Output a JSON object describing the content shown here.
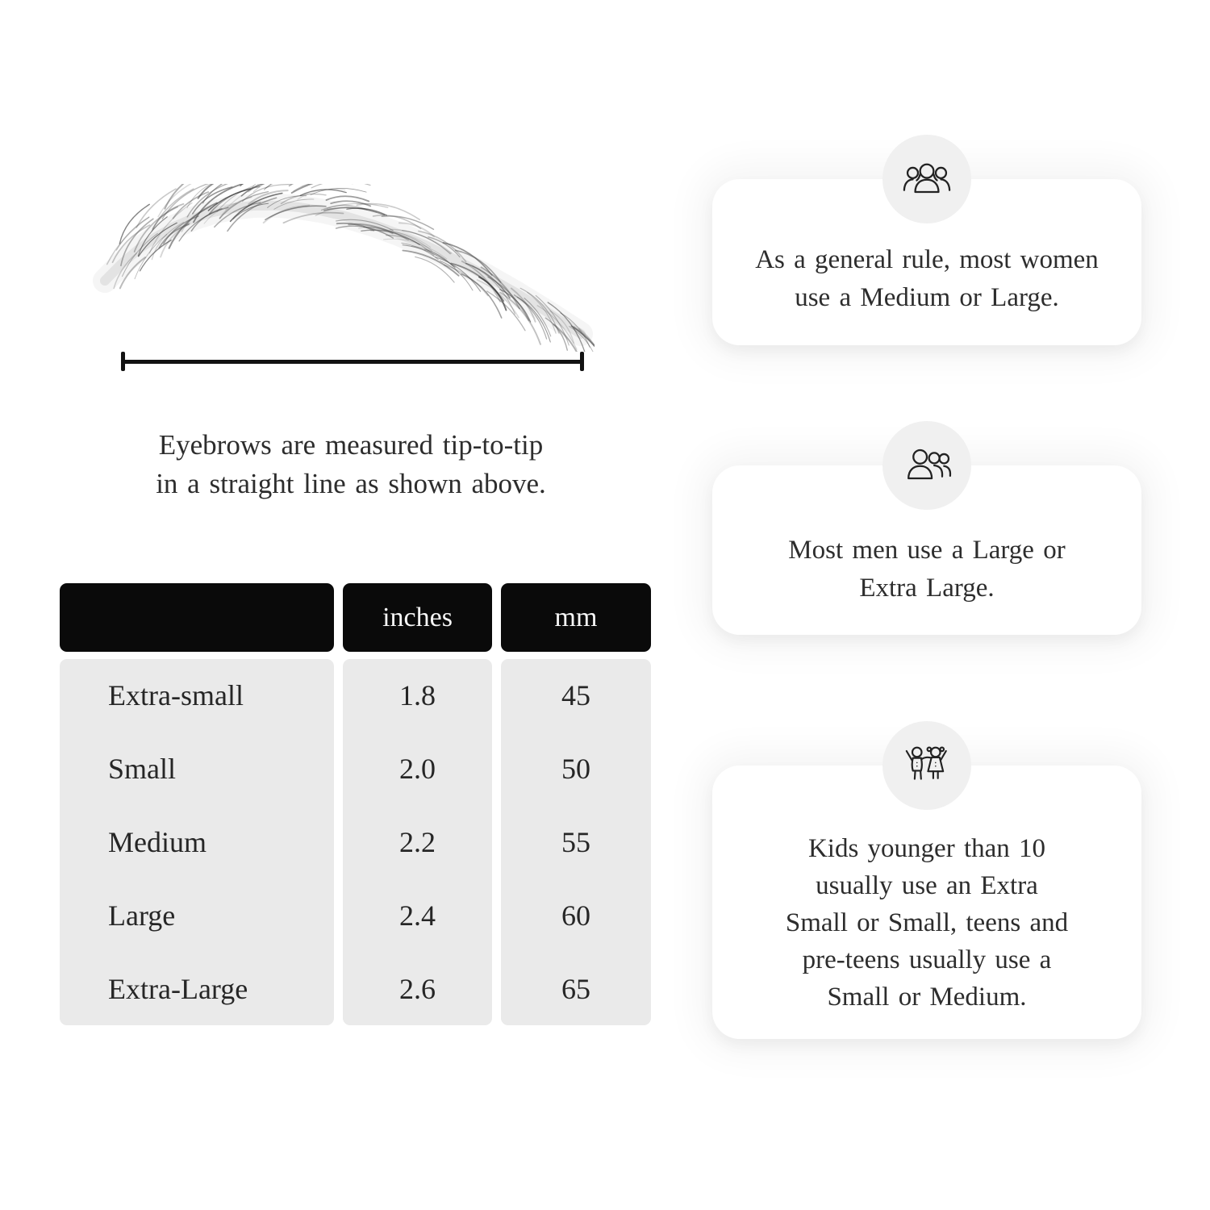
{
  "measure": {
    "caption_line1": "Eyebrows are measured tip-to-tip",
    "caption_line2": "in a straight line as shown above."
  },
  "table": {
    "headers": [
      "",
      "inches",
      "mm"
    ],
    "rows": [
      {
        "label": "Extra-small",
        "inches": "1.8",
        "mm": "45"
      },
      {
        "label": "Small",
        "inches": "2.0",
        "mm": "50"
      },
      {
        "label": "Medium",
        "inches": "2.2",
        "mm": "55"
      },
      {
        "label": "Large",
        "inches": "2.4",
        "mm": "60"
      },
      {
        "label": "Extra-Large",
        "inches": "2.6",
        "mm": "65"
      }
    ]
  },
  "cards": [
    {
      "icon": "women-group-icon",
      "lines": [
        "As a general rule, most women",
        "use a Medium or Large."
      ]
    },
    {
      "icon": "men-group-icon",
      "lines": [
        "Most men use a Large or",
        "Extra Large."
      ]
    },
    {
      "icon": "kids-icon",
      "lines": [
        "Kids younger than 10",
        "usually use an Extra",
        "Small or Small, teens and",
        "pre-teens usually use a",
        "Small or Medium."
      ]
    }
  ],
  "colors": {
    "table_header_bg": "#0a0a0a",
    "table_header_text": "#f7f7f7",
    "table_body_bg": "#eaeaea",
    "card_bg": "#ffffff",
    "icon_circle_bg": "#f0f0f0",
    "line_color": "#121212",
    "text_ink": "#2d2d2d"
  }
}
